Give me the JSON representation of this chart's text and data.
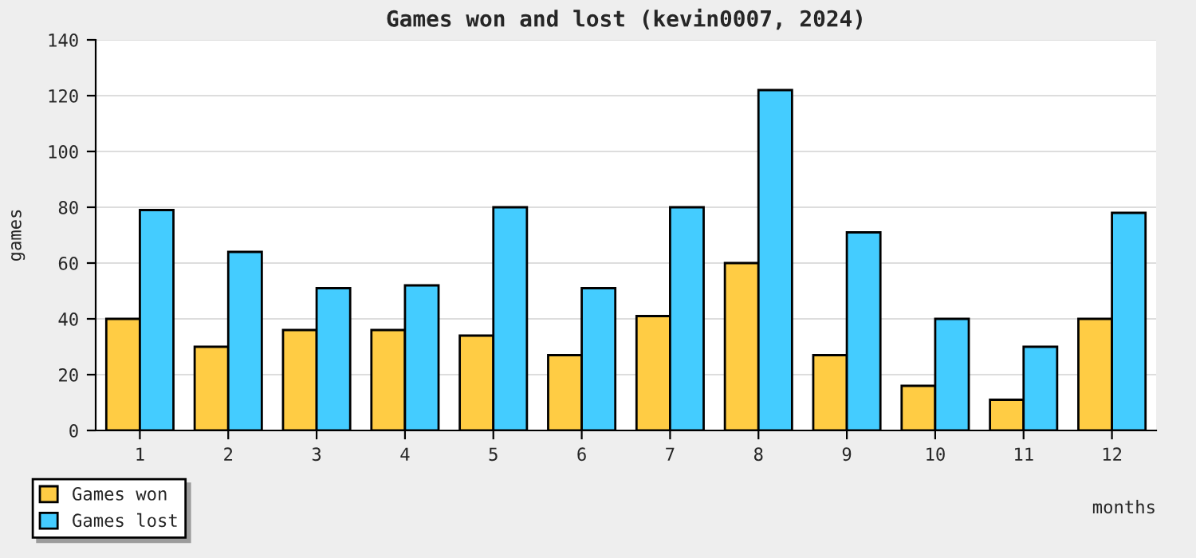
{
  "chart_data": {
    "type": "bar",
    "title": "Games won and lost (kevin0007, 2024)",
    "xlabel": "months",
    "ylabel": "games",
    "categories": [
      "1",
      "2",
      "3",
      "4",
      "5",
      "6",
      "7",
      "8",
      "9",
      "10",
      "11",
      "12"
    ],
    "series": [
      {
        "name": "Games won",
        "color": "#ffcc44",
        "values": [
          40,
          30,
          36,
          36,
          34,
          27,
          41,
          60,
          27,
          16,
          11,
          40
        ]
      },
      {
        "name": "Games lost",
        "color": "#44ccff",
        "values": [
          79,
          64,
          51,
          52,
          80,
          51,
          80,
          122,
          71,
          40,
          30,
          78
        ]
      }
    ],
    "ylim": [
      0,
      140
    ],
    "yticks": [
      0,
      20,
      40,
      60,
      80,
      100,
      120,
      140
    ],
    "grid": "y",
    "legend": "bottom left"
  }
}
